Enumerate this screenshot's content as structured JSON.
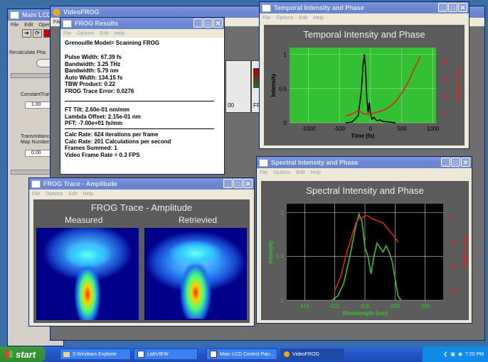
{
  "lv": {
    "title": "Main LCD C",
    "menu": [
      "File",
      "Edit",
      "Opera"
    ],
    "recalc_label": "Recalculate Pha",
    "constant_label": "ConstantTrar",
    "constant_value": "1.00",
    "trans_label1": "Transmittance",
    "trans_label2": "Map Number",
    "trans_value": "0.00"
  },
  "videofrog": {
    "title": "VideoFROG",
    "menu": [
      "File"
    ],
    "thumb_labels": [
      "00",
      "FR"
    ]
  },
  "results": {
    "title": "FROG Results",
    "menu": [
      "File",
      "Options",
      "Edit",
      "Help"
    ],
    "model": "Grenouille Model= Scanning FROG",
    "lines1": [
      "Pulse Width: 67.39 fs",
      "Bandwidth: 3.25 THz",
      "Bandwidth: 5.79 nm",
      "Auto Width: 134.15 fs",
      "TBW Product: 0.22",
      "FROG Trace Error: 0.0276"
    ],
    "lines2": [
      "FT Tilt:  2.60e-01 nm/mm",
      "Lambda Offset:  2.15e-01 nm",
      "PFT:   -7.00e+01 fs/mm"
    ],
    "lines3": [
      "Calc Rate: 624 iterations per frame",
      "Calc Rate: 201 Calculations per second",
      "Frames Summed: 1",
      "Video Frame Rate = 0.3 FPS"
    ]
  },
  "temporal": {
    "win_title": "Temporal Intensity and Phase",
    "menu": [
      "File",
      "Options",
      "Edit",
      "Help"
    ],
    "plot_title": "Temporal Intensity and Phase",
    "ylabel": "Intensity",
    "y2label": "Phase (Rad)",
    "xlabel": "Time (fs)",
    "xticks": [
      "-1000",
      "-500",
      "0",
      "500",
      "1000"
    ],
    "yticks": [
      "1",
      "0.5",
      "0"
    ],
    "y2ticks": [
      "30",
      "20",
      "10",
      "0"
    ]
  },
  "spectral": {
    "win_title": "Spectral Intensity and Phase",
    "menu": [
      "File",
      "Options",
      "Edit",
      "Help"
    ],
    "plot_title": "Spectral Intensity and Phase",
    "ylabel": "Intensity",
    "y2label": "Phase (Rad)",
    "xlabel": "Wavelength (nm)",
    "xticks": [
      "415",
      "410",
      "405",
      "400",
      "395"
    ],
    "yticks": [
      "1",
      "0.5",
      "0"
    ],
    "y2ticks": [
      "0",
      "-10",
      "-20",
      "-30"
    ]
  },
  "trace": {
    "win_title": "FROG Trace - Amplitude",
    "menu": [
      "File",
      "Options",
      "Edit",
      "Help"
    ],
    "panel_title": "FROG Trace - Amplitude",
    "measured": "Measured",
    "retrieved": "Retrievied"
  },
  "taskbar": {
    "start": "start",
    "tasks": [
      "3 Windows Explorer",
      "LabVIEW",
      "Main LCD Control Pan...",
      "VideoFROG"
    ],
    "clock": "7:20 PM"
  },
  "colors": {
    "intensity": "#34c234",
    "phase": "#e02020",
    "temporal_intensity": "#000000"
  },
  "chart_data": [
    {
      "type": "line",
      "title": "Temporal Intensity and Phase",
      "xlabel": "Time (fs)",
      "ylabel": "Intensity",
      "y2label": "Phase (Rad)",
      "xlim": [
        -1300,
        1050
      ],
      "ylim": [
        0,
        1.1
      ],
      "y2lim": [
        -5,
        38
      ],
      "series": [
        {
          "name": "Intensity",
          "axis": "left",
          "x": [
            -400,
            -300,
            -200,
            -150,
            -120,
            -100,
            -80,
            -60,
            -40,
            -20,
            0,
            20,
            50,
            100,
            150,
            200,
            300,
            400
          ],
          "y": [
            0,
            0.01,
            0.1,
            0.45,
            0.85,
            1.0,
            0.8,
            0.35,
            0.15,
            0.3,
            0.12,
            0.05,
            0.08,
            0.03,
            0.04,
            0.02,
            0.01,
            0
          ]
        },
        {
          "name": "Phase",
          "axis": "right",
          "x": [
            -400,
            -300,
            -200,
            -100,
            0,
            100,
            200,
            300,
            400,
            500,
            600,
            700,
            800
          ],
          "y": [
            -1,
            0,
            2,
            0,
            0,
            1,
            2,
            4,
            7,
            12,
            18,
            26,
            33
          ]
        }
      ]
    },
    {
      "type": "line",
      "title": "Spectral Intensity and Phase",
      "xlabel": "Wavelength (nm)",
      "ylabel": "Intensity",
      "y2label": "Phase (Rad)",
      "xlim": [
        418,
        392
      ],
      "ylim": [
        0,
        1.1
      ],
      "y2lim": [
        -34,
        6
      ],
      "series": [
        {
          "name": "Intensity",
          "axis": "left",
          "x": [
            410.5,
            409.5,
            408.5,
            407.5,
            406.5,
            406,
            405.5,
            405,
            404.5,
            404,
            403.5,
            403,
            402.5,
            402,
            401.5,
            401,
            400.5,
            400,
            399.5,
            399
          ],
          "y": [
            0,
            0.05,
            0.2,
            0.5,
            0.85,
            0.98,
            0.9,
            0.6,
            0.5,
            0.3,
            0.5,
            0.65,
            0.6,
            0.55,
            0.62,
            0.55,
            0.45,
            0.25,
            0.05,
            0
          ]
        },
        {
          "name": "Phase",
          "axis": "right",
          "x": [
            410,
            409,
            408,
            407,
            406.5,
            406,
            405.5,
            405,
            404.5,
            404,
            403,
            402,
            401,
            400,
            399.5
          ],
          "y": [
            -30,
            -24,
            -14,
            -6,
            -2,
            0,
            0,
            1,
            1,
            0,
            -1,
            -2,
            -5,
            -8,
            -10
          ]
        }
      ]
    }
  ]
}
